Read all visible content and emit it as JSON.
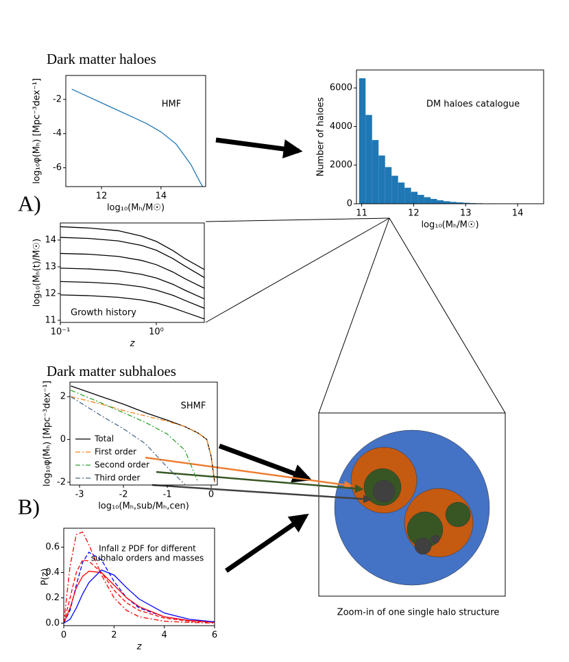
{
  "title_a": "Dark matter haloes",
  "title_b": "Dark matter subhaloes",
  "label_a": "A)",
  "label_b": "B)",
  "caption": "Zoom-in of one single halo structure",
  "chart_data": [
    {
      "type": "line",
      "annotation": "HMF",
      "xlabel": "log₁₀(Mₕ/M☉)",
      "ylabel": "log₁₀φ(Mₕ) [Mpc⁻³dex⁻¹]",
      "xlim": [
        10.8,
        15.5
      ],
      "xticks": [
        12,
        14
      ],
      "ylim": [
        -7.1,
        -0.6
      ],
      "yticks": [
        -2,
        -4,
        -6
      ],
      "x": [
        11,
        11.5,
        12,
        12.5,
        13,
        13.5,
        14,
        14.5,
        15,
        15.3,
        15.4
      ],
      "series": [
        {
          "color": "#1f77b4",
          "values": [
            -1.4,
            -1.8,
            -2.2,
            -2.6,
            -3.0,
            -3.4,
            -3.9,
            -4.6,
            -5.8,
            -6.8,
            -7.1
          ]
        }
      ]
    },
    {
      "type": "histogram",
      "annotation": "DM haloes catalogue",
      "xlabel": "log₁₀(Mₕ/M☉)",
      "ylabel": "Number of haloes",
      "xlim": [
        10.9,
        14.5
      ],
      "xticks": [
        11,
        12,
        13,
        14
      ],
      "ylim": [
        0,
        6930
      ],
      "yticks": [
        0,
        2000,
        4000,
        6000
      ],
      "color": "#1f77b4",
      "bins": [
        10.95,
        11.075,
        11.2,
        11.325,
        11.45,
        11.575,
        11.7,
        11.825,
        11.95,
        12.075,
        12.2,
        12.325,
        12.45,
        12.575,
        12.7,
        12.825,
        12.95,
        13.075,
        13.2,
        13.325,
        13.45,
        13.575,
        13.7,
        13.825,
        13.95,
        14.075,
        14.2,
        14.325,
        14.45
      ],
      "values": [
        6500,
        4600,
        3300,
        2500,
        1900,
        1450,
        1100,
        830,
        620,
        460,
        340,
        250,
        180,
        130,
        95,
        70,
        50,
        35,
        25,
        18,
        12,
        8,
        6,
        4,
        3,
        2,
        1,
        1
      ]
    },
    {
      "type": "line",
      "annotation": "Growth history",
      "xscale": "log",
      "xlabel": "z",
      "ylabel": "log₁₀(Mₕ(t)/M☉)",
      "xlim": [
        0.1,
        3.16
      ],
      "xticks": [
        {
          "value": 0.1,
          "label": "10⁻¹"
        },
        {
          "value": 1,
          "label": "10⁰"
        }
      ],
      "ylim": [
        10.92,
        14.64
      ],
      "yticks": [
        11,
        12,
        13,
        14
      ],
      "x": [
        0.1,
        0.2,
        0.4,
        0.7,
        1,
        1.5,
        2,
        3.16
      ],
      "series": [
        {
          "color": "#000000",
          "values": [
            14.5,
            14.45,
            14.35,
            14.15,
            13.95,
            13.6,
            13.3,
            12.9
          ]
        },
        {
          "color": "#000000",
          "values": [
            14.1,
            14.06,
            13.97,
            13.8,
            13.62,
            13.3,
            13.02,
            12.6
          ]
        },
        {
          "color": "#000000",
          "values": [
            13.5,
            13.47,
            13.39,
            13.24,
            13.08,
            12.8,
            12.55,
            12.2
          ]
        },
        {
          "color": "#000000",
          "values": [
            12.95,
            12.92,
            12.85,
            12.72,
            12.58,
            12.34,
            12.12,
            11.8
          ]
        },
        {
          "color": "#000000",
          "values": [
            12.45,
            12.42,
            12.36,
            12.25,
            12.13,
            11.93,
            11.74,
            11.45
          ]
        },
        {
          "color": "#000000",
          "values": [
            11.95,
            11.92,
            11.86,
            11.76,
            11.65,
            11.46,
            11.3,
            11.05
          ]
        }
      ]
    },
    {
      "type": "line",
      "annotation": "SHMF",
      "legend": "lower left",
      "xlabel": "log₁₀(Mₕ,sub/Mₕ,cen)",
      "ylabel": "log₁₀φ(Mₕ) [Mpc⁻³dex⁻¹]",
      "xlim": [
        -3.22,
        0.14
      ],
      "xticks": [
        -3,
        -2,
        -1,
        0
      ],
      "ylim": [
        -2.13,
        2.68
      ],
      "yticks": [
        2,
        0,
        -2
      ],
      "x": [
        -3.2,
        -2.5,
        -2,
        -1.5,
        -1,
        -0.6,
        -0.3,
        -0.1,
        0,
        0.08
      ],
      "series": [
        {
          "name": "Total",
          "color": "#000000",
          "dash": "solid",
          "values": [
            2.5,
            2.0,
            1.65,
            1.25,
            0.9,
            0.6,
            0.3,
            0,
            -0.8,
            -2.0
          ]
        },
        {
          "name": "First order",
          "color": "#ff7f0e",
          "dash": "dashdot",
          "values": [
            2.0,
            1.65,
            1.35,
            1.1,
            0.85,
            0.6,
            0.3,
            0,
            -0.8,
            -2.0
          ]
        },
        {
          "name": "Second order",
          "color": "#2ca02c",
          "dash": "dashdot",
          "values": [
            2.3,
            1.7,
            1.25,
            0.8,
            0.25,
            -0.5,
            -2.0,
            null,
            null,
            null
          ]
        },
        {
          "name": "Third order",
          "color": "#4a6a8a",
          "dash": "dashdot",
          "values": [
            2.0,
            1.1,
            0.5,
            -0.2,
            -1.3,
            -2.1,
            null,
            null,
            null,
            null
          ]
        }
      ]
    },
    {
      "type": "line",
      "annotation": [
        "Infall z PDF for different",
        "subhalo orders and masses"
      ],
      "xlabel": "z",
      "ylabel": "P(z)",
      "xlim": [
        0,
        6
      ],
      "xticks": [
        0,
        2,
        4,
        6
      ],
      "ylim": [
        -0.02,
        0.75
      ],
      "yticks": [
        {
          "value": 0,
          "label": "0.0"
        },
        0.2,
        0.4,
        0.6
      ],
      "x": [
        0,
        0.25,
        0.5,
        0.75,
        1,
        1.5,
        2,
        2.5,
        3,
        4,
        5,
        6
      ],
      "series": [
        {
          "color": "#ff0000",
          "dash": "dashdot",
          "values": [
            0,
            0.45,
            0.7,
            0.72,
            0.62,
            0.38,
            0.2,
            0.1,
            0.05,
            0.015,
            0.005,
            0
          ]
        },
        {
          "color": "#0000ff",
          "dash": "dashed",
          "values": [
            0,
            0.1,
            0.3,
            0.48,
            0.56,
            0.5,
            0.33,
            0.2,
            0.12,
            0.05,
            0.02,
            0.01
          ]
        },
        {
          "color": "#ff0000",
          "dash": "dashed",
          "values": [
            0,
            0.2,
            0.4,
            0.5,
            0.49,
            0.4,
            0.26,
            0.16,
            0.1,
            0.04,
            0.015,
            0.005
          ]
        },
        {
          "color": "#ff0000",
          "dash": "solid",
          "values": [
            0,
            0.12,
            0.28,
            0.37,
            0.41,
            0.4,
            0.3,
            0.2,
            0.13,
            0.05,
            0.02,
            0.01
          ]
        },
        {
          "color": "#0000ff",
          "dash": "solid",
          "values": [
            0,
            0.03,
            0.12,
            0.23,
            0.32,
            0.42,
            0.38,
            0.28,
            0.19,
            0.08,
            0.03,
            0.01
          ]
        }
      ]
    }
  ]
}
